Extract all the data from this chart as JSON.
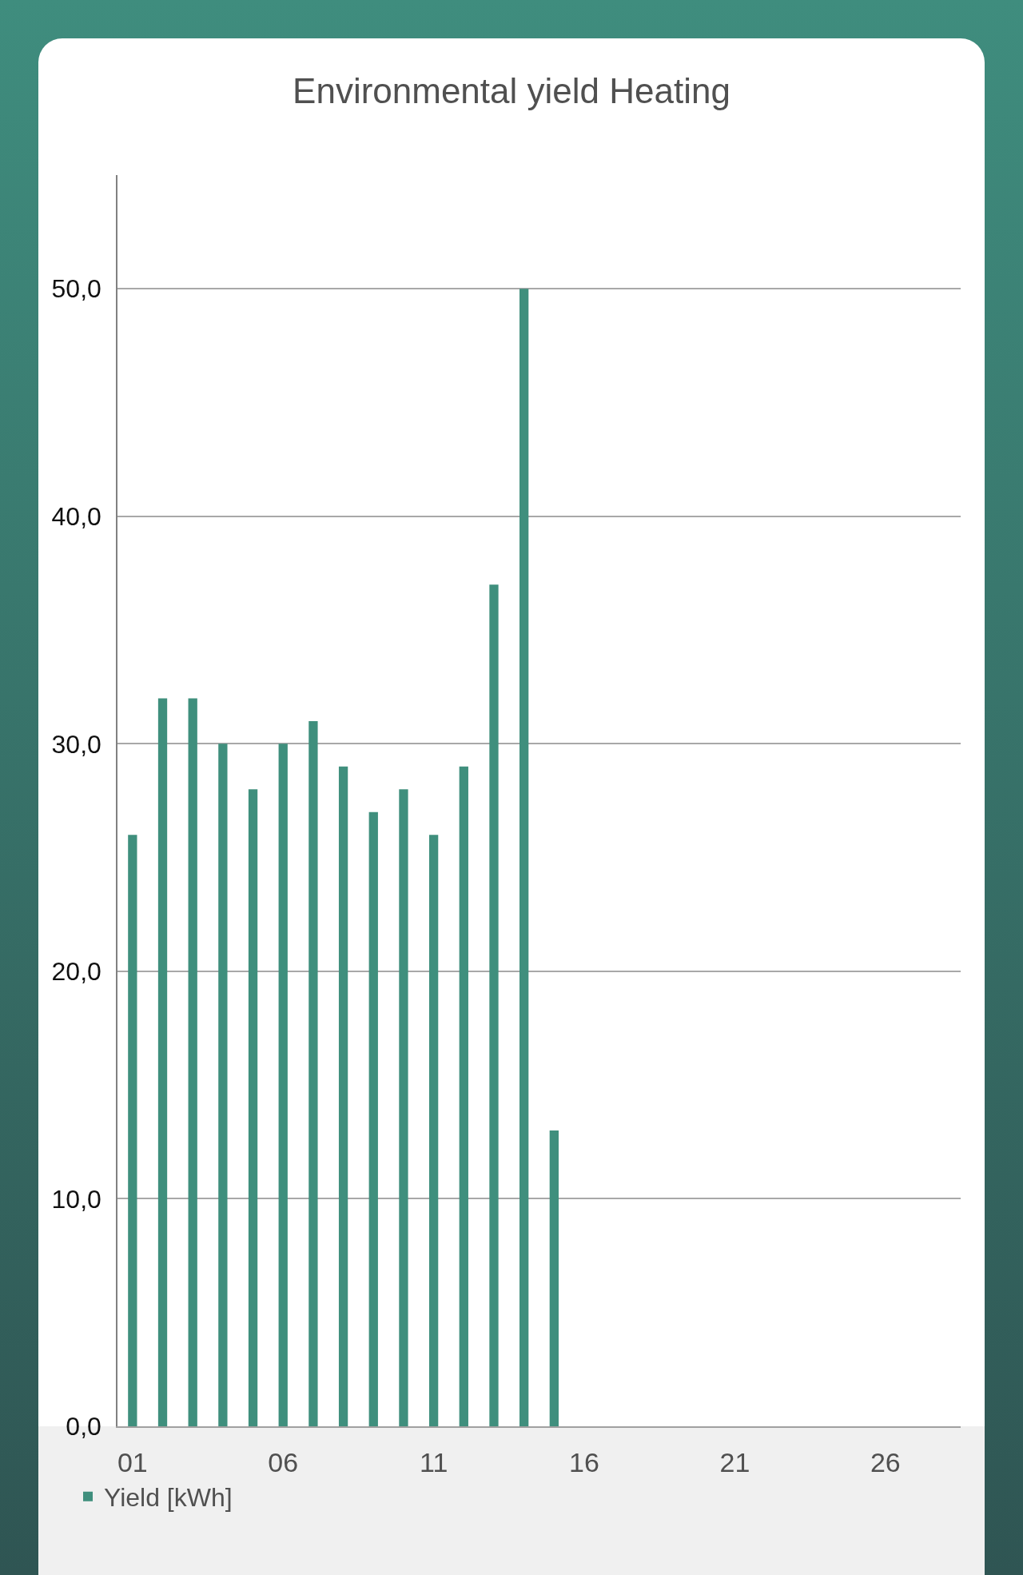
{
  "chart_data": {
    "type": "bar",
    "title": "Environmental yield Heating",
    "x": [
      1,
      2,
      3,
      4,
      5,
      6,
      7,
      8,
      9,
      10,
      11,
      12,
      13,
      14,
      15
    ],
    "series": [
      {
        "name": "Yield [kWh]",
        "color": "#3f8f7d",
        "values": [
          26,
          32,
          32,
          30,
          28,
          30,
          31,
          29,
          27,
          28,
          26,
          29,
          37,
          50,
          13
        ]
      }
    ],
    "xlim": [
      0.5,
      28.5
    ],
    "xticks": [
      {
        "value": 1,
        "label": "01"
      },
      {
        "value": 6,
        "label": "06"
      },
      {
        "value": 11,
        "label": "11"
      },
      {
        "value": 16,
        "label": "16"
      },
      {
        "value": 21,
        "label": "21"
      },
      {
        "value": 26,
        "label": "26"
      }
    ],
    "ylim": [
      0,
      55
    ],
    "yticks": [
      {
        "value": 0,
        "label": "0,0"
      },
      {
        "value": 10,
        "label": "10,0"
      },
      {
        "value": 20,
        "label": "20,0"
      },
      {
        "value": 30,
        "label": "30,0"
      },
      {
        "value": 40,
        "label": "40,0"
      },
      {
        "value": 50,
        "label": "50,0"
      }
    ],
    "grid": "y",
    "legend": "bottom left"
  }
}
